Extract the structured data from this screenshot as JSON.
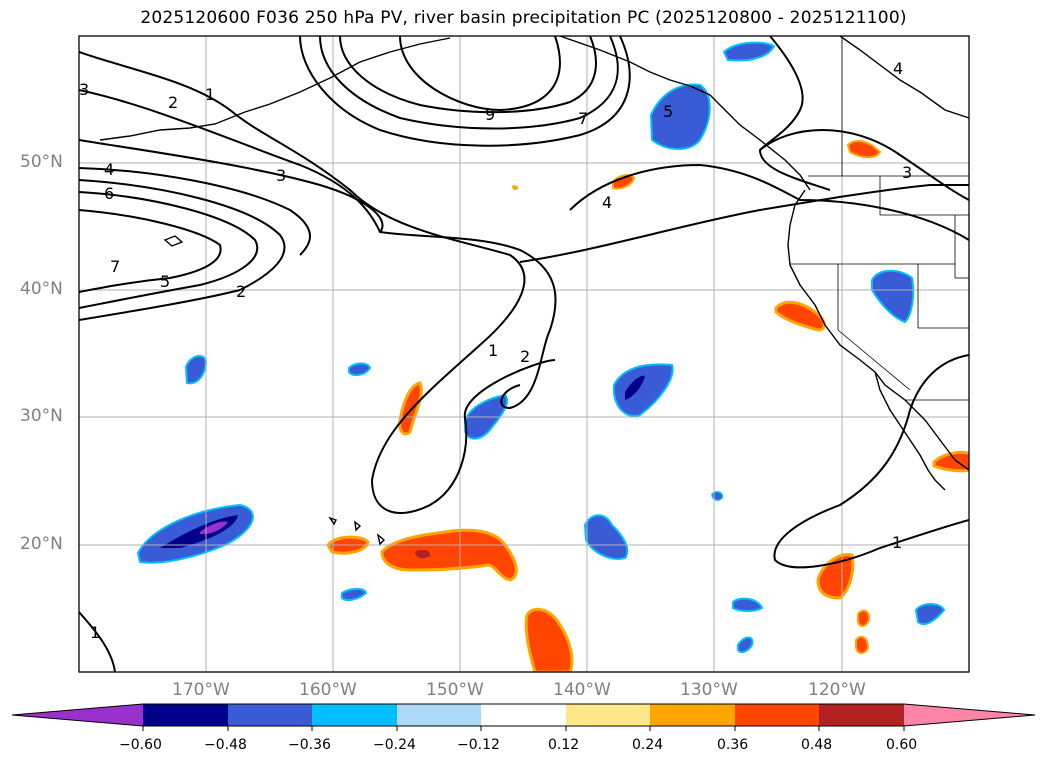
{
  "title": "2025120600 F036 250 hPa PV, river basin precipitation PC (2025120800 - 2025121100)",
  "colors": {
    "land_outline": "#000000",
    "grid": "#b0b0b0",
    "tick_label": "#808080"
  },
  "latitude_labels": [
    "50°N",
    "40°N",
    "30°N",
    "20°N"
  ],
  "longitude_labels": [
    "170°W",
    "160°W",
    "150°W",
    "140°W",
    "130°W",
    "120°W"
  ],
  "pv_contour_labels": [
    "1",
    "2",
    "3",
    "4",
    "5",
    "6",
    "7",
    "9",
    "1",
    "2",
    "1",
    "2",
    "3",
    "4",
    "5",
    "7",
    "4",
    "3",
    "4",
    "1",
    "1",
    "3"
  ],
  "colorbar": {
    "ticks": [
      "−0.60",
      "−0.48",
      "−0.36",
      "−0.24",
      "−0.12",
      "0.12",
      "0.24",
      "0.36",
      "0.48",
      "0.60"
    ],
    "colors": [
      "#9932cc",
      "#00008b",
      "#3a5bd6",
      "#00bfff",
      "#add8f8",
      "#ffffff",
      "#ffe88a",
      "#ffa500",
      "#ff4500",
      "#b22222",
      "#ff85a8"
    ]
  }
}
